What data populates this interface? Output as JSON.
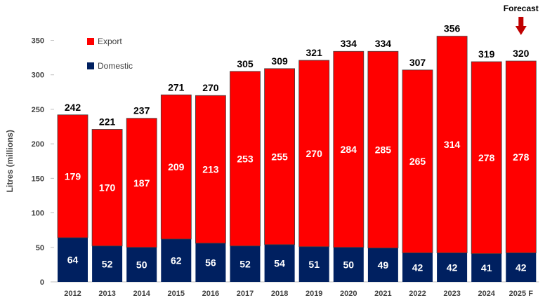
{
  "chart_data": {
    "type": "bar",
    "stacked": true,
    "categories": [
      "2012",
      "2013",
      "2014",
      "2015",
      "2016",
      "2017",
      "2018",
      "2019",
      "2020",
      "2021",
      "2022",
      "2023",
      "2024",
      "2025 F"
    ],
    "series": [
      {
        "name": "Domestic",
        "color": "#002060",
        "values": [
          64,
          52,
          50,
          62,
          56,
          52,
          54,
          51,
          50,
          49,
          42,
          42,
          41,
          42
        ]
      },
      {
        "name": "Export",
        "color": "#ff0000",
        "values": [
          179,
          170,
          187,
          209,
          213,
          253,
          255,
          270,
          284,
          285,
          265,
          314,
          278,
          278
        ]
      }
    ],
    "totals": [
      242,
      221,
      237,
      271,
      270,
      305,
      309,
      321,
      334,
      334,
      307,
      356,
      319,
      320
    ],
    "ylabel": "Litres (millions)",
    "yticks": [
      0,
      50,
      100,
      150,
      200,
      250,
      300,
      350
    ],
    "ylim": [
      0,
      350
    ],
    "grid": false,
    "legend_position": "top-left",
    "annotation": {
      "text": "Forecast",
      "target": "2025 F",
      "color": "#c00000"
    }
  }
}
